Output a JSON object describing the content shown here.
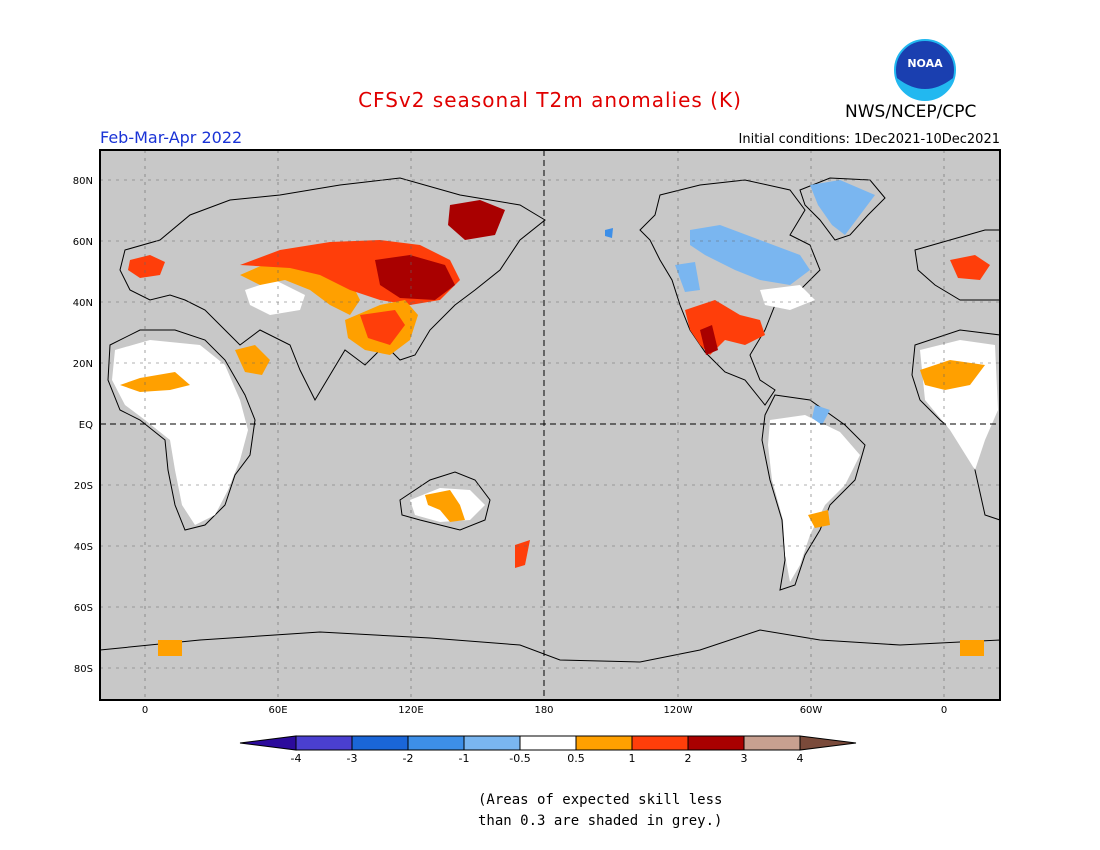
{
  "header": {
    "title": "CFSv2 seasonal T2m anomalies (K)",
    "organization": "NWS/NCEP/CPC",
    "period": "Feb-Mar-Apr 2022",
    "initial_conditions": "Initial conditions: 1Dec2021-10Dec2021",
    "logo_text": "NOAA"
  },
  "axes": {
    "lat_labels": [
      "80N",
      "60N",
      "40N",
      "20N",
      "EQ",
      "20S",
      "40S",
      "60S",
      "80S"
    ],
    "lon_labels": [
      "0",
      "60E",
      "120E",
      "180",
      "120W",
      "60W",
      "0"
    ]
  },
  "legend": {
    "tick_labels": [
      "-4",
      "-3",
      "-2",
      "-1",
      "-0.5",
      "0.5",
      "1",
      "2",
      "3",
      "4"
    ],
    "colors": [
      "#2c0b9c",
      "#4a3fd0",
      "#1a66d8",
      "#3d8fe8",
      "#7ab6f0",
      "#ffffff",
      "#ffa000",
      "#ff3e0a",
      "#a90000",
      "#c8a090",
      "#7a4a3a"
    ]
  },
  "map_colors": {
    "ocean_grey": "#c8c8c8",
    "land_skill_white": "#ffffff",
    "coast_line": "#000000"
  },
  "footnote": {
    "line1": "(Areas of expected skill less",
    "line2": "than 0.3 are shaded in grey.)"
  }
}
